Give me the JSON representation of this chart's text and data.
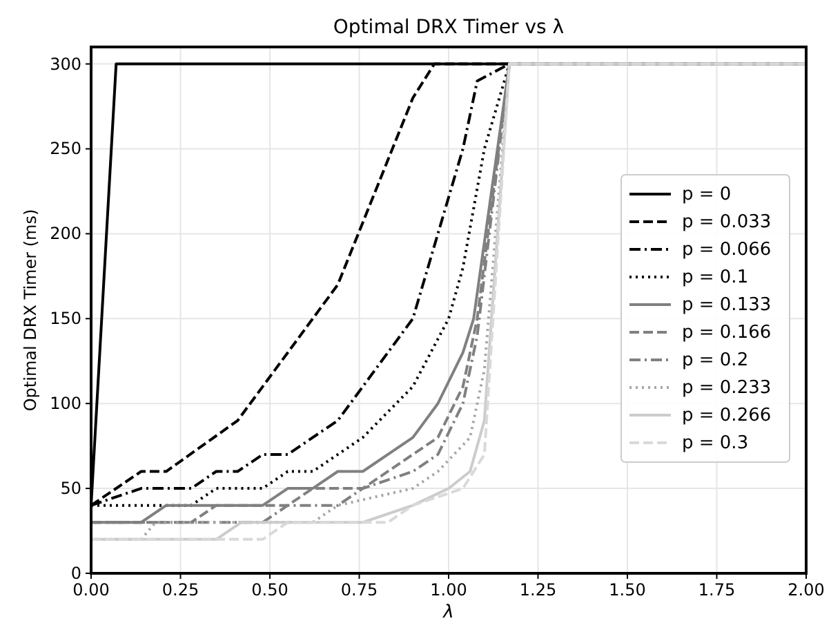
{
  "chart_data": {
    "type": "line",
    "title": "Optimal DRX Timer vs λ",
    "xlabel": "λ",
    "ylabel": "Optimal DRX Timer (ms)",
    "xlim": [
      0,
      2
    ],
    "ylim": [
      0,
      310
    ],
    "xticks": [
      {
        "value": 0,
        "label": "0.00"
      },
      {
        "value": 0.25,
        "label": "0.25"
      },
      {
        "value": 0.5,
        "label": "0.50"
      },
      {
        "value": 0.75,
        "label": "0.75"
      },
      {
        "value": 1,
        "label": "1.00"
      },
      {
        "value": 1.25,
        "label": "1.25"
      },
      {
        "value": 1.5,
        "label": "1.50"
      },
      {
        "value": 1.75,
        "label": "1.75"
      },
      {
        "value": 2,
        "label": "2.00"
      }
    ],
    "yticks": [
      0,
      50,
      100,
      150,
      200,
      250,
      300
    ],
    "grid": true,
    "legend": "right",
    "series": [
      {
        "name": "p = 0",
        "color": "#000000",
        "line_style": "solid",
        "x": [
          0,
          0.07,
          2
        ],
        "values": [
          40,
          300,
          300
        ]
      },
      {
        "name": "p = 0.033",
        "color": "#000000",
        "line_style": "dashed",
        "x": [
          0,
          0.14,
          0.21,
          0.41,
          0.55,
          0.69,
          0.9,
          0.96,
          2
        ],
        "values": [
          40,
          60,
          60,
          90,
          130,
          170,
          280,
          300,
          300
        ]
      },
      {
        "name": "p = 0.066",
        "color": "#000000",
        "line_style": "dashdot",
        "x": [
          0,
          0.14,
          0.28,
          0.35,
          0.41,
          0.48,
          0.55,
          0.69,
          0.9,
          0.97,
          1.04,
          1.08,
          1.17,
          2
        ],
        "values": [
          40,
          50,
          50,
          60,
          60,
          70,
          70,
          90,
          150,
          200,
          250,
          290,
          300,
          300
        ]
      },
      {
        "name": "p = 0.1",
        "color": "#000000",
        "line_style": "dotted",
        "x": [
          0,
          0.28,
          0.35,
          0.48,
          0.55,
          0.62,
          0.76,
          0.9,
          1,
          1.04,
          1.1,
          1.17,
          2
        ],
        "values": [
          40,
          40,
          50,
          50,
          60,
          60,
          80,
          110,
          150,
          180,
          250,
          300,
          300
        ]
      },
      {
        "name": "p = 0.133",
        "color": "#808080",
        "line_style": "solid",
        "x": [
          0,
          0.14,
          0.21,
          0.48,
          0.55,
          0.62,
          0.69,
          0.76,
          0.9,
          0.97,
          1.04,
          1.07,
          1.17,
          2
        ],
        "values": [
          30,
          30,
          40,
          40,
          50,
          50,
          60,
          60,
          80,
          100,
          130,
          150,
          300,
          300
        ]
      },
      {
        "name": "p = 0.166",
        "color": "#808080",
        "line_style": "dashed",
        "x": [
          0,
          0.28,
          0.35,
          0.55,
          0.62,
          0.76,
          0.9,
          0.97,
          1.04,
          1.08,
          1.17,
          2
        ],
        "values": [
          30,
          30,
          40,
          40,
          50,
          50,
          70,
          80,
          110,
          150,
          300,
          300
        ]
      },
      {
        "name": "p = 0.2",
        "color": "#808080",
        "line_style": "dashdot",
        "x": [
          0,
          0.48,
          0.55,
          0.69,
          0.76,
          0.9,
          0.97,
          1.04,
          1.08,
          1.17,
          2
        ],
        "values": [
          30,
          30,
          40,
          40,
          50,
          60,
          70,
          100,
          140,
          300,
          300
        ]
      },
      {
        "name": "p = 0.233",
        "color": "#a6a6a6",
        "line_style": "dotted",
        "x": [
          0,
          0.14,
          0.18,
          0.62,
          0.69,
          0.9,
          0.97,
          1.06,
          1.1,
          1.17,
          2
        ],
        "values": [
          20,
          20,
          30,
          30,
          40,
          50,
          60,
          80,
          120,
          300,
          300
        ]
      },
      {
        "name": "p = 0.266",
        "color": "#cccccc",
        "line_style": "solid",
        "x": [
          0,
          0.35,
          0.42,
          0.76,
          0.9,
          1,
          1.06,
          1.1,
          1.17,
          2
        ],
        "values": [
          20,
          20,
          30,
          30,
          40,
          50,
          60,
          90,
          300,
          300
        ]
      },
      {
        "name": "p = 0.3",
        "color": "#d9d9d9",
        "line_style": "dashed",
        "x": [
          0,
          0.48,
          0.55,
          0.83,
          0.9,
          1.04,
          1.1,
          1.17,
          2
        ],
        "values": [
          20,
          20,
          30,
          30,
          40,
          50,
          70,
          300,
          300
        ]
      }
    ]
  }
}
